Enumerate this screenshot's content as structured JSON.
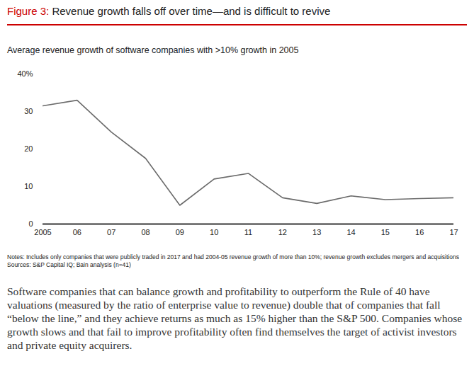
{
  "chart_data": {
    "type": "line",
    "figure_label": "Figure 3:",
    "title": "Revenue growth falls off over time—and is difficult to revive",
    "subtitle": "Average revenue growth of software companies with >10% growth in 2005",
    "notes": "Notes: Includes only companies that were publicly traded in 2017 and had 2004-05 revenue growth of more than 10%; revenue growth excludes mergers and acquisitions",
    "sources": "Sources: S&P Capital IQ; Bain analysis (n=41)",
    "x": [
      2005,
      2006,
      2007,
      2008,
      2009,
      2010,
      2011,
      2012,
      2013,
      2014,
      2015,
      2016,
      2017
    ],
    "values": [
      31.5,
      33,
      24.5,
      17.5,
      5,
      12,
      13.5,
      7,
      5.5,
      7.5,
      6.5,
      6.8,
      7
    ],
    "color": "#6b6b6b",
    "xlim": [
      2005,
      2017
    ],
    "xticks": [
      2005,
      {
        "value": 2006,
        "label": "06"
      },
      {
        "value": 2007,
        "label": "07"
      },
      {
        "value": 2008,
        "label": "08"
      },
      {
        "value": 2009,
        "label": "09"
      },
      {
        "value": 2010,
        "label": "10"
      },
      {
        "value": 2011,
        "label": "11"
      },
      {
        "value": 2012,
        "label": "12"
      },
      {
        "value": 2013,
        "label": "13"
      },
      {
        "value": 2014,
        "label": "14"
      },
      {
        "value": 2015,
        "label": "15"
      },
      {
        "value": 2016,
        "label": "16"
      },
      {
        "value": 2017,
        "label": "17"
      }
    ],
    "ylim": [
      0,
      40
    ],
    "yticks": [
      0,
      10,
      20,
      30,
      {
        "value": 40,
        "label": "40%"
      }
    ],
    "grid": false
  },
  "body_text": "Software companies that can balance growth and profitability to outperform the Rule of 40 have valuations (measured by the ratio of enterprise value to revenue) double that of companies that fall “below the line,” and they achieve returns as much as 15% higher than the S&P 500. Companies whose growth slows and that fail to improve profitability often find themselves the target of activist investors and private equity acquirers."
}
